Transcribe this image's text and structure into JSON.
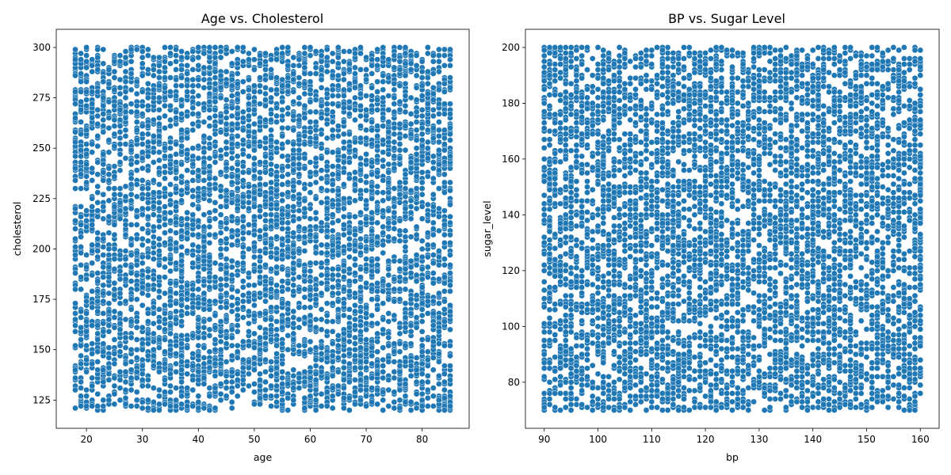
{
  "colors": {
    "point": "#1f77b4",
    "background": "#ffffff"
  },
  "chart_data": [
    {
      "type": "scatter",
      "title": "Age vs. Cholesterol",
      "xlabel": "age",
      "ylabel": "cholesterol",
      "xlim": [
        14.6,
        88.4
      ],
      "ylim": [
        111,
        309
      ],
      "xticks": [
        20,
        30,
        40,
        50,
        60,
        70,
        80
      ],
      "yticks": [
        125,
        150,
        175,
        200,
        225,
        250,
        275,
        300
      ],
      "x_integer": true,
      "x_range": [
        18,
        85
      ],
      "y_range": [
        120,
        300
      ],
      "n_points": 6000,
      "seed": 12345,
      "grid": false,
      "legend": false
    },
    {
      "type": "scatter",
      "title": "BP vs. Sugar Level",
      "xlabel": "bp",
      "ylabel": "sugar_level",
      "xlim": [
        86.5,
        163.5
      ],
      "ylim": [
        63.5,
        206.5
      ],
      "xticks": [
        90,
        100,
        110,
        120,
        130,
        140,
        150,
        160
      ],
      "yticks": [
        80,
        100,
        120,
        140,
        160,
        180,
        200
      ],
      "x_integer": true,
      "x_range": [
        90,
        160
      ],
      "y_range": [
        70,
        200
      ],
      "n_points": 6000,
      "seed": 67890,
      "grid": false,
      "legend": false
    }
  ]
}
